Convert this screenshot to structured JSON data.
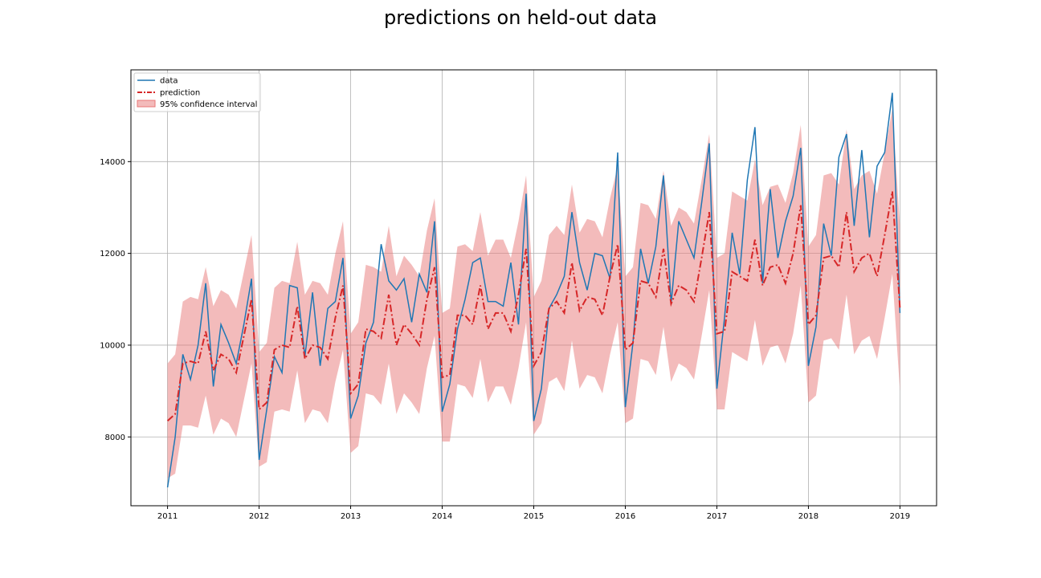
{
  "chart_data": {
    "type": "line",
    "title": "predictions on held-out data",
    "xlabel": "",
    "ylabel": "",
    "xlim": [
      2010.6,
      2019.4
    ],
    "ylim": [
      6500,
      16000
    ],
    "x_ticks": [
      "2011",
      "2012",
      "2013",
      "2014",
      "2015",
      "2016",
      "2017",
      "2018",
      "2019"
    ],
    "y_ticks": [
      "8000",
      "10000",
      "12000",
      "14000"
    ],
    "grid": true,
    "legend_position": "top-left",
    "x_start": "2011-01",
    "x_step": "1 month",
    "series": [
      {
        "name": "data",
        "color": "#1f77b4",
        "style": "solid",
        "values": [
          6900,
          8000,
          9800,
          9250,
          10000,
          11350,
          9100,
          10450,
          10050,
          9600,
          10450,
          11450,
          7500,
          8600,
          9750,
          9400,
          11300,
          11250,
          9750,
          11150,
          9550,
          10800,
          10950,
          11900,
          8400,
          8900,
          10050,
          10500,
          12200,
          11400,
          11200,
          11450,
          10500,
          11550,
          11150,
          12700,
          8550,
          9150,
          10350,
          11000,
          11800,
          11900,
          10950,
          10950,
          10850,
          11800,
          10450,
          13300,
          8350,
          9050,
          10800,
          11100,
          11500,
          12900,
          11800,
          11200,
          12000,
          11950,
          11450,
          14200,
          8650,
          10050,
          12100,
          11350,
          12150,
          13700,
          10900,
          12700,
          12300,
          11900,
          13100,
          14400,
          9050,
          10600,
          12450,
          11550,
          13600,
          14750,
          11350,
          13400,
          11900,
          12700,
          13250,
          14300,
          9550,
          10400,
          12650,
          11950,
          14100,
          14600,
          12600,
          14250,
          12350,
          13900,
          14200,
          15500,
          10700
        ]
      },
      {
        "name": "prediction",
        "color": "#d62728",
        "style": "dashdot",
        "values": [
          8350,
          8500,
          9600,
          9650,
          9600,
          10300,
          9450,
          9800,
          9700,
          9400,
          10200,
          11000,
          8600,
          8750,
          9900,
          10000,
          9950,
          10850,
          9700,
          10000,
          9950,
          9700,
          10600,
          11300,
          8950,
          9150,
          10350,
          10300,
          10150,
          11100,
          10000,
          10450,
          10250,
          10000,
          11000,
          11700,
          9300,
          9350,
          10650,
          10650,
          10450,
          11300,
          10350,
          10700,
          10700,
          10300,
          11100,
          12100,
          9550,
          9850,
          10800,
          10950,
          10700,
          11800,
          10750,
          11050,
          11000,
          10650,
          11500,
          12200,
          9900,
          10050,
          11400,
          11350,
          11050,
          12100,
          10900,
          11300,
          11200,
          10950,
          11900,
          12900,
          10250,
          10300,
          11600,
          11500,
          11400,
          12300,
          11300,
          11700,
          11750,
          11350,
          12000,
          13050,
          10450,
          10650,
          11900,
          11950,
          11700,
          12900,
          11600,
          11900,
          12000,
          11500,
          12400,
          13350,
          10800
        ]
      }
    ],
    "confidence_interval": {
      "name": "95% confidence interval",
      "color": "#e87777",
      "half_width": [
        1250,
        1300,
        1350,
        1400,
        1400,
        1400,
        1400,
        1400,
        1400,
        1400,
        1400,
        1400,
        1250,
        1300,
        1350,
        1400,
        1400,
        1400,
        1400,
        1400,
        1400,
        1400,
        1400,
        1400,
        1300,
        1350,
        1400,
        1400,
        1450,
        1500,
        1500,
        1500,
        1500,
        1500,
        1500,
        1500,
        1400,
        1450,
        1500,
        1550,
        1600,
        1600,
        1600,
        1600,
        1600,
        1600,
        1600,
        1600,
        1500,
        1550,
        1600,
        1650,
        1700,
        1700,
        1700,
        1700,
        1700,
        1700,
        1700,
        1700,
        1600,
        1650,
        1700,
        1700,
        1700,
        1700,
        1700,
        1700,
        1700,
        1700,
        1700,
        1700,
        1650,
        1700,
        1750,
        1750,
        1750,
        1750,
        1750,
        1750,
        1750,
        1750,
        1750,
        1750,
        1700,
        1750,
        1800,
        1800,
        1800,
        1800,
        1800,
        1800,
        1800,
        1800,
        1800,
        1800,
        1800
      ]
    }
  }
}
